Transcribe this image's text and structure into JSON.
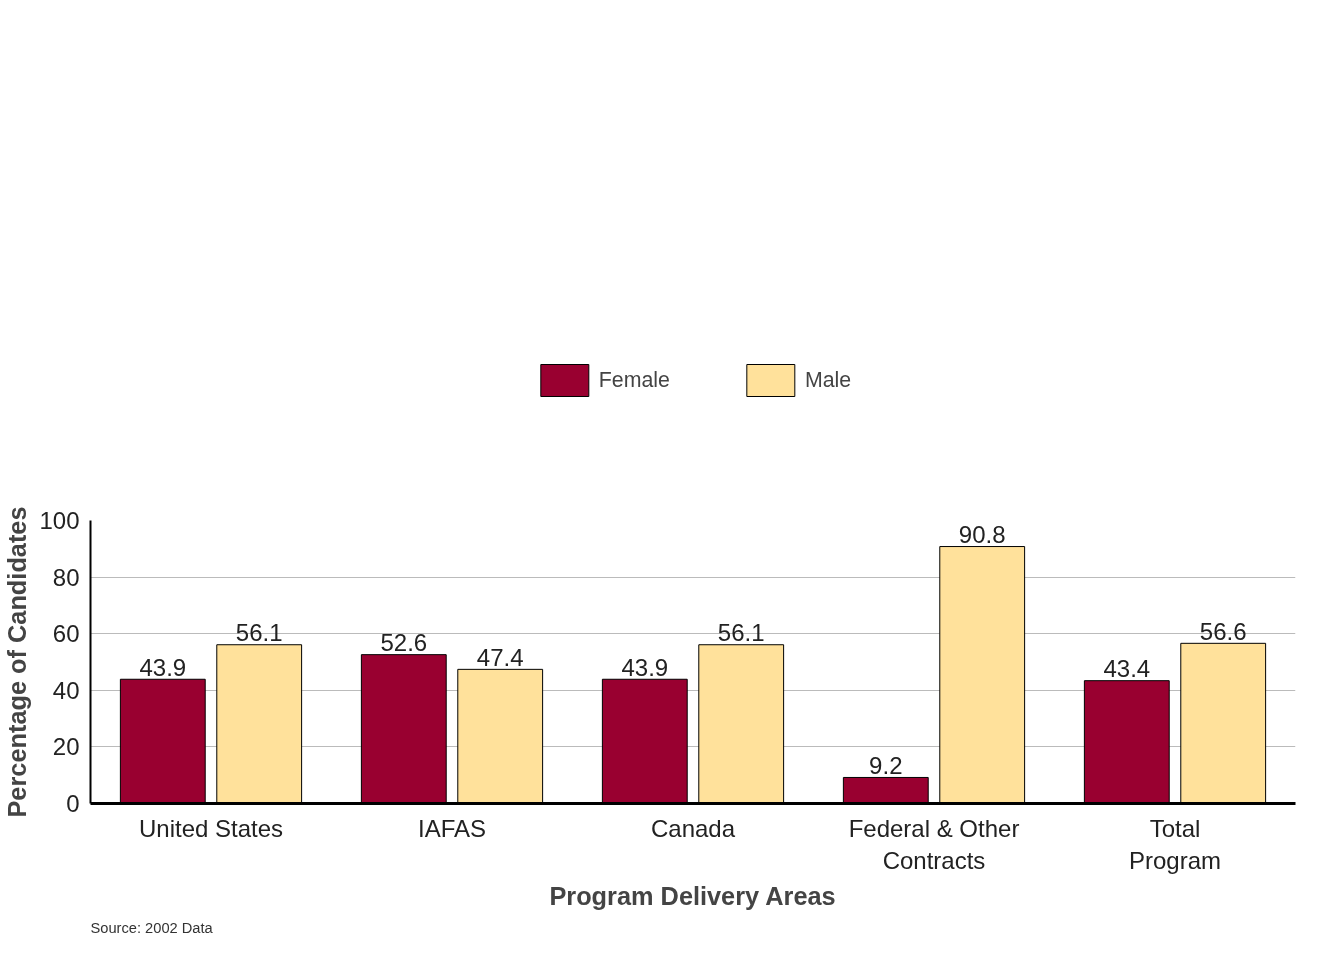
{
  "chart_data": {
    "type": "bar",
    "categories": [
      "United States",
      "IAFAS",
      "Canada",
      "Federal & Other\nContracts",
      "Total\nProgram"
    ],
    "series": [
      {
        "name": "Female",
        "color": "#990030",
        "values": [
          43.9,
          52.6,
          43.9,
          9.2,
          43.4
        ]
      },
      {
        "name": "Male",
        "color": "#ffe19b",
        "values": [
          56.1,
          47.4,
          56.1,
          90.8,
          56.6
        ]
      }
    ],
    "xlabel": "Program Delivery Areas",
    "ylabel": "Percentage of Candidates",
    "ylim": [
      0,
      100
    ],
    "yticks": [
      0,
      20,
      40,
      60,
      80,
      100
    ],
    "grid": "y",
    "legend": "top",
    "data_labels": true,
    "annotations": [
      "Source: 2002 Data"
    ]
  }
}
